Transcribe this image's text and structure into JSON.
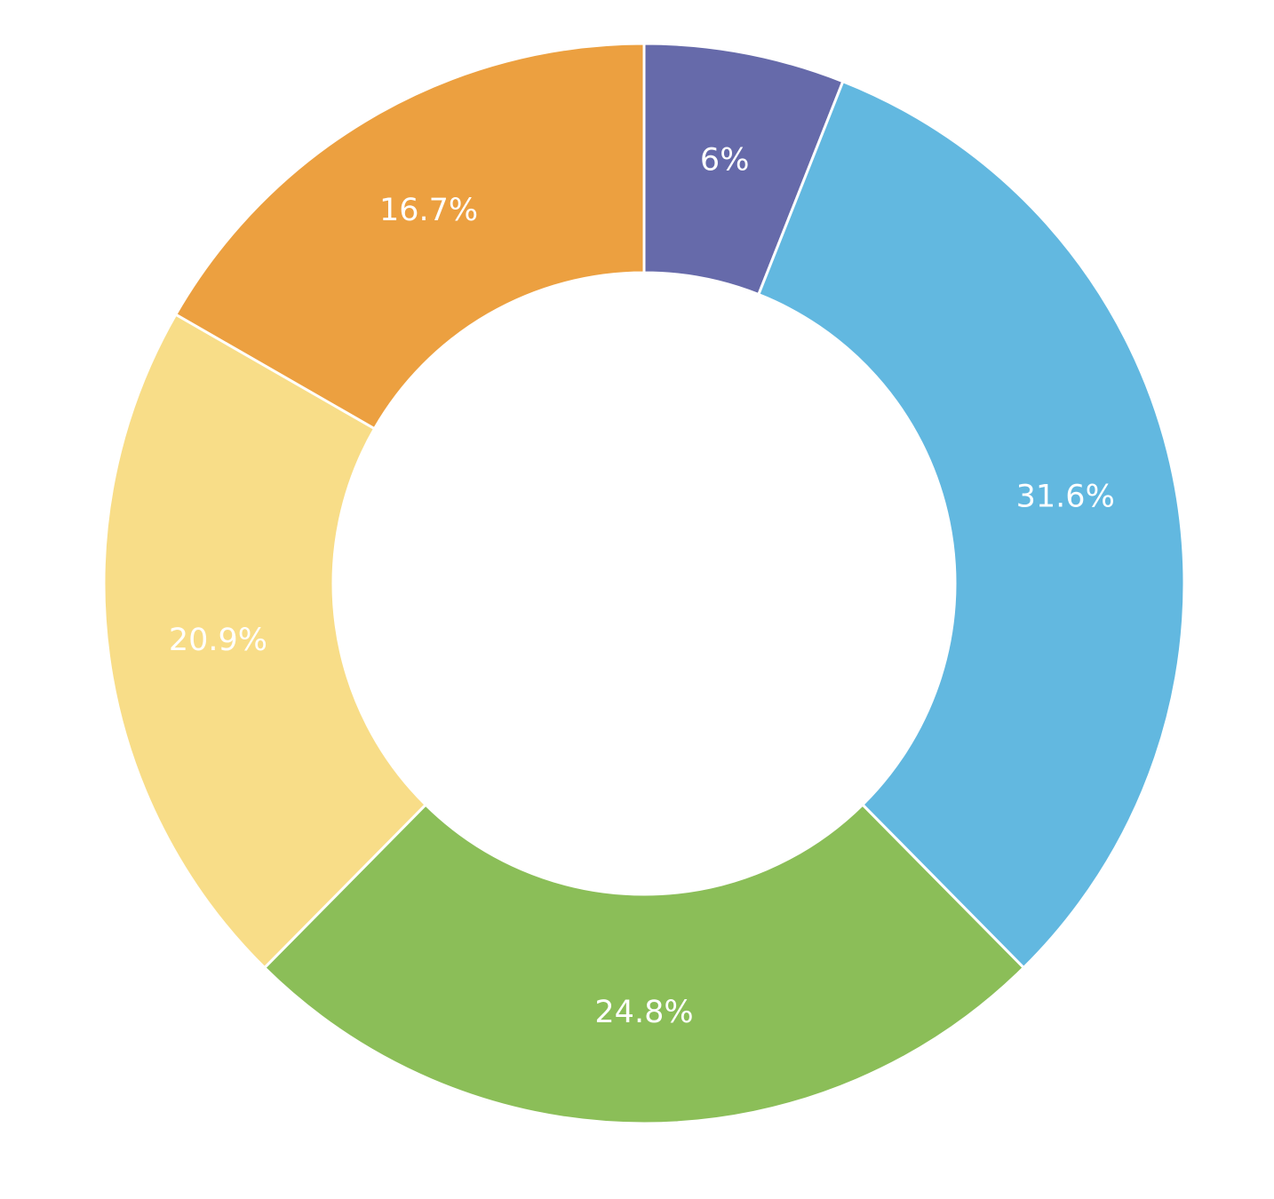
{
  "chart_data": {
    "type": "pie",
    "variant": "donut",
    "slices": [
      {
        "label": "6%",
        "value": 6.0,
        "color": "#666aaa"
      },
      {
        "label": "31.6%",
        "value": 31.6,
        "color": "#62b8e0"
      },
      {
        "label": "24.8%",
        "value": 24.8,
        "color": "#8bbe58"
      },
      {
        "label": "20.9%",
        "value": 20.9,
        "color": "#f8dd88"
      },
      {
        "label": "16.7%",
        "value": 16.7,
        "color": "#eca040"
      }
    ],
    "start_angle": "12 o'clock",
    "direction": "clockwise",
    "legend": "none",
    "title": ""
  }
}
